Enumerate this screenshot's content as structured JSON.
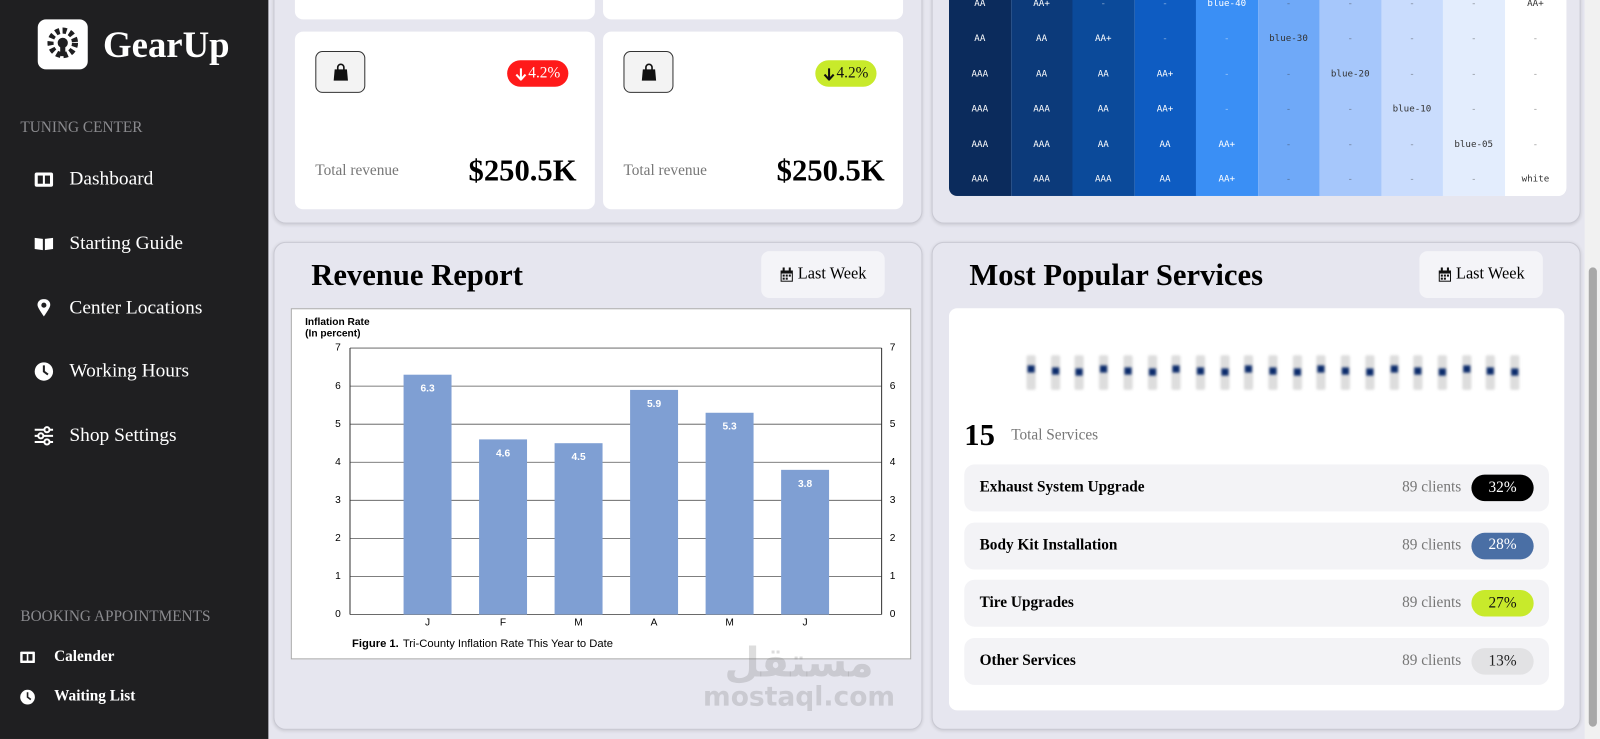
{
  "sidebar": {
    "brand": "GearUp",
    "section_1": "TUNING CENTER",
    "nav": [
      "Dashboard",
      "Starting Guide",
      "Center Locations",
      "Working Hours",
      "Shop Settings"
    ],
    "section_2": "BOOKING APPOINTMENTS",
    "booking": [
      "Calender",
      "Waiting List"
    ]
  },
  "stat_cards": [
    {
      "badge": "4.2%",
      "label": "Total revenue",
      "value": "$250.5K"
    },
    {
      "badge": "4.2%",
      "label": "Total revenue",
      "value": "$250.5K"
    }
  ],
  "color_table": {
    "rows": [
      [
        "AA",
        "AA+",
        "-",
        "-",
        "blue-40",
        "-",
        "-",
        "-",
        "-",
        "AA+"
      ],
      [
        "AA",
        "AA",
        "AA+",
        "-",
        "-",
        "blue-30",
        "-",
        "-",
        "-",
        "-"
      ],
      [
        "AAA",
        "AA",
        "AA",
        "AA+",
        "-",
        "-",
        "blue-20",
        "-",
        "-",
        "-"
      ],
      [
        "AAA",
        "AAA",
        "AA",
        "AA+",
        "-",
        "-",
        "-",
        "blue-10",
        "-",
        "-"
      ],
      [
        "AAA",
        "AAA",
        "AA",
        "AA",
        "AA+",
        "-",
        "-",
        "-",
        "blue-05",
        "-"
      ],
      [
        "AAA",
        "AAA",
        "AAA",
        "AA",
        "AA+",
        "-",
        "-",
        "-",
        "-",
        "white"
      ]
    ]
  },
  "revenue_report": {
    "title": "Revenue Report",
    "button": "Last Week"
  },
  "chart_data": {
    "type": "bar",
    "title": "Inflation Rate",
    "subtitle": "(In percent)",
    "caption_label": "Figure 1.",
    "caption": "Tri-County Inflation Rate This Year to Date",
    "categories": [
      "J",
      "F",
      "M",
      "A",
      "M",
      "J"
    ],
    "values": [
      6.3,
      4.6,
      4.5,
      5.9,
      5.3,
      3.8
    ],
    "color": "#7f9fd3",
    "ylim": [
      0,
      7
    ],
    "yticks": [
      0,
      1,
      2,
      3,
      4,
      5,
      6,
      7
    ],
    "grid": true
  },
  "popular_services": {
    "title": "Most Popular Services",
    "button": "Last Week",
    "total": "15",
    "total_label": "Total Services",
    "items": [
      {
        "name": "Exhaust System Upgrade",
        "clients": "89 clients",
        "share": "32%",
        "color": "#000000",
        "text_color": "#ffffff"
      },
      {
        "name": "Body Kit Installation",
        "clients": "89 clients",
        "share": "28%",
        "color": "#4a6fa5",
        "text_color": "#ffffff"
      },
      {
        "name": "Tire Upgrades",
        "clients": "89 clients",
        "share": "27%",
        "color": "#c8ea2b",
        "text_color": "#111111"
      },
      {
        "name": "Other Services",
        "clients": "89 clients",
        "share": "13%",
        "color": "#e2e2e4",
        "text_color": "#222222"
      }
    ]
  },
  "watermark": {
    "arabic": "مستقل",
    "latin": "mostaql.com"
  }
}
